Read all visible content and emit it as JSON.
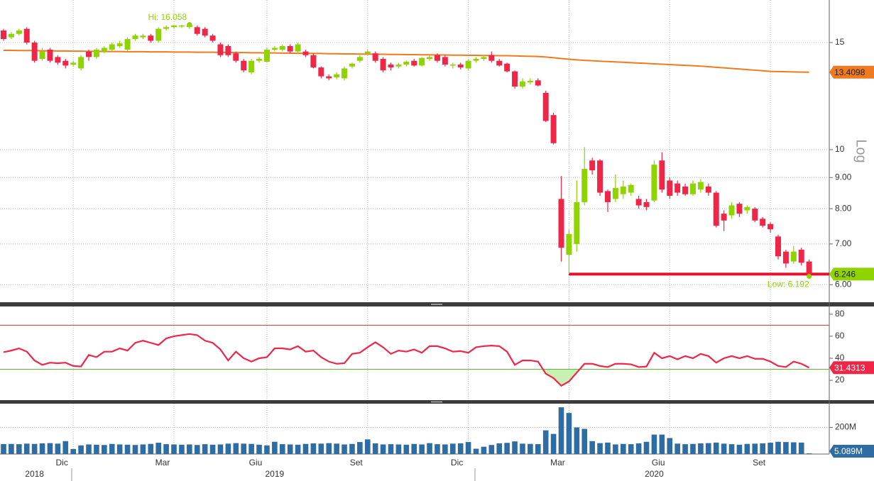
{
  "chart_data": [
    {
      "type": "candlestick",
      "scale": "log",
      "scale_label": "Log",
      "ylim": [
        5.63,
        17.62
      ],
      "yticks": [
        {
          "value": 6,
          "label": "6.00"
        },
        {
          "value": 7,
          "label": "7.00"
        },
        {
          "value": 8,
          "label": "8.00"
        },
        {
          "value": 9,
          "label": "9.00"
        },
        10,
        15
      ],
      "grid": true,
      "up_color": "#8fd400",
      "down_color": "#ee2748",
      "tag_color": "#8fd400",
      "level_color": "#e8112d",
      "annotations": [
        "Hi: 16.058",
        "Low: 6.192"
      ],
      "open": [
        15.7,
        15.3,
        15.5,
        15.8,
        15.0,
        14.1,
        14.6,
        14.2,
        14.0,
        13.8,
        13.6,
        14.5,
        14.2,
        14.5,
        14.6,
        14.8,
        14.6,
        15.2,
        15.3,
        15.4,
        15.1,
        15.8,
        15.9,
        15.95,
        15.9,
        15.9,
        15.8,
        15.4,
        14.9,
        14.8,
        14.4,
        14.0,
        13.4,
        14.0,
        13.95,
        14.6,
        14.6,
        14.8,
        14.5,
        14.5,
        14.3,
        13.65,
        13.2,
        13.15,
        13.1,
        13.7,
        14.0,
        14.4,
        14.4,
        14.1,
        13.8,
        13.7,
        13.8,
        14.0,
        13.75,
        14.1,
        14.3,
        14.2,
        13.75,
        13.8,
        13.6,
        14.0,
        14.1,
        14.3,
        14.0,
        13.85,
        13.45,
        12.7,
        12.9,
        13.0,
        12.4,
        11.4,
        8.3,
        6.72,
        7.0,
        8.2,
        9.6,
        9.6,
        8.55,
        8.3,
        8.45,
        8.5,
        8.3,
        8.2,
        8.25,
        9.6,
        8.9,
        8.8,
        8.7,
        8.45,
        8.6,
        8.7,
        8.5,
        7.85,
        7.8,
        8.15,
        7.95,
        8.0,
        7.7,
        7.55,
        7.2,
        6.8,
        6.55,
        6.85,
        6.55
      ],
      "high": [
        15.8,
        15.6,
        15.8,
        15.9,
        15.1,
        14.7,
        14.7,
        14.3,
        14.1,
        14.0,
        14.3,
        14.6,
        14.7,
        14.8,
        15.0,
        15.1,
        15.3,
        15.5,
        15.5,
        15.5,
        15.9,
        16.0,
        16.05,
        16.04,
        16.058,
        16.0,
        15.9,
        15.5,
        15.0,
        14.9,
        14.5,
        14.1,
        14.1,
        14.2,
        14.7,
        14.8,
        14.9,
        14.9,
        15.0,
        14.6,
        14.4,
        13.7,
        13.3,
        13.4,
        13.7,
        13.9,
        14.3,
        14.6,
        14.5,
        14.2,
        13.9,
        13.9,
        14.0,
        14.1,
        14.2,
        14.3,
        14.4,
        14.3,
        13.9,
        13.9,
        14.1,
        14.2,
        14.3,
        14.5,
        14.1,
        13.9,
        13.5,
        13.1,
        13.1,
        13.1,
        12.5,
        11.5,
        9.05,
        7.4,
        8.9,
        10.1,
        9.7,
        9.65,
        8.6,
        9.1,
        8.9,
        8.8,
        8.4,
        8.3,
        9.6,
        9.9,
        9.0,
        8.9,
        8.8,
        8.9,
        8.95,
        8.8,
        8.55,
        7.95,
        8.2,
        8.2,
        8.1,
        8.05,
        7.75,
        7.6,
        7.25,
        6.85,
        6.95,
        6.9,
        6.6
      ],
      "low": [
        15.1,
        15.2,
        15.4,
        14.9,
        13.9,
        14.0,
        13.9,
        13.8,
        13.6,
        13.7,
        13.5,
        14.0,
        14.1,
        14.4,
        14.5,
        14.7,
        14.5,
        15.1,
        15.2,
        15.0,
        15.0,
        15.7,
        15.8,
        15.85,
        15.8,
        15.4,
        15.3,
        15.0,
        14.2,
        14.2,
        13.9,
        13.4,
        13.3,
        13.9,
        13.9,
        14.5,
        14.5,
        14.4,
        14.4,
        14.2,
        13.6,
        13.1,
        13.0,
        13.05,
        13.0,
        13.6,
        13.9,
        14.3,
        13.9,
        13.4,
        13.5,
        13.6,
        13.7,
        13.7,
        13.7,
        14.0,
        13.9,
        13.7,
        13.6,
        13.55,
        13.5,
        13.9,
        14.0,
        13.9,
        13.7,
        13.4,
        12.6,
        12.6,
        12.8,
        12.7,
        11.1,
        10.2,
        6.55,
        6.25,
        6.8,
        8.1,
        9.1,
        8.4,
        7.9,
        8.2,
        8.3,
        8.4,
        8.0,
        7.95,
        8.2,
        8.5,
        8.3,
        8.4,
        8.4,
        8.4,
        8.5,
        8.4,
        7.45,
        7.35,
        7.7,
        7.75,
        7.85,
        7.6,
        7.45,
        7.3,
        6.6,
        6.4,
        6.5,
        6.45,
        6.192
      ],
      "close": [
        15.2,
        15.5,
        15.7,
        15.0,
        14.0,
        14.5,
        14.0,
        13.9,
        13.75,
        13.9,
        14.2,
        14.2,
        14.6,
        14.7,
        14.9,
        14.95,
        15.2,
        15.4,
        15.4,
        15.1,
        15.8,
        15.9,
        16.0,
        16.0,
        16.05,
        15.5,
        15.4,
        15.1,
        14.3,
        14.3,
        14.0,
        13.5,
        14.0,
        14.1,
        14.6,
        14.7,
        14.8,
        14.5,
        14.9,
        14.3,
        13.65,
        13.2,
        13.1,
        13.3,
        13.6,
        13.85,
        14.2,
        14.5,
        14.0,
        13.5,
        13.65,
        13.8,
        13.95,
        13.75,
        14.15,
        14.2,
        14.0,
        13.8,
        13.8,
        13.65,
        14.0,
        14.1,
        14.2,
        14.0,
        13.75,
        13.45,
        12.7,
        12.95,
        12.98,
        12.75,
        11.15,
        10.25,
        6.9,
        7.27,
        8.2,
        9.3,
        9.25,
        8.5,
        8.2,
        8.65,
        8.7,
        8.75,
        8.1,
        8.05,
        9.45,
        8.6,
        8.4,
        8.5,
        8.45,
        8.8,
        8.85,
        8.5,
        7.5,
        7.65,
        8.1,
        7.85,
        8.05,
        7.65,
        7.5,
        7.4,
        6.68,
        6.5,
        6.8,
        6.52,
        6.246
      ],
      "overlay": {
        "color": "#f07a1f",
        "values": [
          14.56,
          14.56,
          14.55,
          14.55,
          14.55,
          14.54,
          14.54,
          14.53,
          14.53,
          14.52,
          14.52,
          14.51,
          14.51,
          14.5,
          14.5,
          14.5,
          14.49,
          14.49,
          14.49,
          14.48,
          14.48,
          14.48,
          14.47,
          14.47,
          14.47,
          14.46,
          14.46,
          14.46,
          14.45,
          14.45,
          14.44,
          14.44,
          14.43,
          14.43,
          14.42,
          14.42,
          14.41,
          14.41,
          14.4,
          14.4,
          14.39,
          14.39,
          14.38,
          14.38,
          14.37,
          14.37,
          14.36,
          14.36,
          14.35,
          14.35,
          14.34,
          14.34,
          14.33,
          14.33,
          14.32,
          14.32,
          14.31,
          14.31,
          14.3,
          14.3,
          14.29,
          14.29,
          14.28,
          14.28,
          14.27,
          14.27,
          14.26,
          14.25,
          14.24,
          14.23,
          14.2,
          14.16,
          14.12,
          14.08,
          14.05,
          14.02,
          14.0,
          13.98,
          13.96,
          13.94,
          13.92,
          13.9,
          13.88,
          13.86,
          13.84,
          13.82,
          13.8,
          13.78,
          13.76,
          13.74,
          13.72,
          13.69,
          13.66,
          13.63,
          13.6,
          13.57,
          13.54,
          13.51,
          13.48,
          13.45,
          13.44,
          13.43,
          13.42,
          13.415,
          13.4098
        ]
      }
    },
    {
      "type": "line",
      "ylim": [
        2,
        87
      ],
      "yticks": [
        20,
        40,
        60,
        80
      ],
      "grid": true,
      "hlines": [
        {
          "value": 70,
          "color": "#c0392b"
        },
        {
          "value": 30,
          "color": "#5cb82e",
          "fill": "#c8f0b4"
        }
      ],
      "series": [
        {
          "color": "#ee2748",
          "values": [
            45.5,
            47,
            49,
            46,
            38,
            34,
            36,
            35.5,
            36,
            33,
            32.5,
            43,
            41,
            46,
            46,
            49,
            47,
            54,
            56,
            54,
            52,
            58,
            60,
            61,
            62,
            61,
            56,
            54,
            48,
            38,
            46,
            40,
            37,
            40,
            41,
            49,
            49,
            48,
            51,
            46,
            47,
            41,
            37,
            35,
            35.5,
            44,
            45,
            50,
            54.5,
            50,
            44,
            47,
            46,
            48,
            45,
            51,
            51,
            49,
            46,
            46.5,
            45,
            50,
            51,
            51.5,
            51,
            46,
            34,
            38,
            38,
            37,
            26,
            22,
            15,
            19,
            27,
            35,
            35,
            33,
            32,
            35,
            35,
            34.5,
            32,
            32.5,
            45,
            40,
            42,
            39,
            42,
            40,
            44,
            42,
            36,
            40,
            42,
            40,
            42,
            39.5,
            39.5,
            37,
            33,
            32,
            37,
            35,
            31.4313
          ]
        }
      ]
    },
    {
      "type": "bar",
      "ylim": [
        0,
        378000000
      ],
      "yticks": [
        {
          "value": 200000000,
          "label": "200M"
        }
      ],
      "grid": true,
      "color": "#2e6da4",
      "categories": [
        null,
        null,
        null,
        null,
        null,
        null,
        null,
        null,
        null,
        "Dic",
        null,
        null,
        null,
        null,
        null,
        null,
        null,
        null,
        null,
        null,
        null,
        null,
        "Mar",
        null,
        null,
        null,
        null,
        null,
        null,
        null,
        null,
        null,
        null,
        null,
        "Giu",
        null,
        null,
        null,
        null,
        null,
        null,
        null,
        null,
        null,
        null,
        null,
        null,
        "Set",
        null,
        null,
        null,
        null,
        null,
        null,
        null,
        null,
        null,
        null,
        null,
        null,
        "Dic",
        null,
        null,
        null,
        null,
        null,
        null,
        null,
        null,
        null,
        null,
        null,
        null,
        "Mar",
        null,
        null,
        null,
        null,
        null,
        null,
        null,
        null,
        null,
        null,
        null,
        null,
        "Giu",
        null,
        null,
        null,
        null,
        null,
        null,
        null,
        null,
        null,
        null,
        null,
        null,
        "Set",
        null,
        null,
        null,
        null,
        null
      ],
      "years": [
        null,
        null,
        null,
        null,
        "2018",
        null,
        null,
        null,
        null,
        null,
        null,
        null,
        null,
        null,
        null,
        null,
        null,
        null,
        null,
        null,
        null,
        null,
        null,
        null,
        null,
        null,
        null,
        null,
        null,
        null,
        null,
        null,
        null,
        null,
        null,
        "2019",
        null,
        null,
        null,
        null,
        null,
        null,
        null,
        null,
        null,
        null,
        null,
        null,
        null,
        null,
        null,
        null,
        null,
        null,
        null,
        null,
        null,
        null,
        null,
        null,
        null,
        null,
        null,
        null,
        null,
        null,
        null,
        null,
        null,
        null,
        null,
        null,
        null,
        null,
        null,
        null,
        null,
        null,
        null,
        null,
        null,
        null,
        null,
        null,
        "2020",
        null,
        null,
        null,
        null,
        null,
        null,
        null,
        null,
        null,
        null,
        null,
        null,
        null,
        null,
        null,
        null,
        null,
        null,
        null,
        null
      ],
      "values": [
        75000000,
        76000000,
        74000000,
        78000000,
        76000000,
        80000000,
        82000000,
        78000000,
        97000000,
        38000000,
        65000000,
        72000000,
        70000000,
        68000000,
        76000000,
        72000000,
        70000000,
        68000000,
        72000000,
        76000000,
        85000000,
        74000000,
        72000000,
        70000000,
        72000000,
        68000000,
        74000000,
        70000000,
        72000000,
        78000000,
        82000000,
        78000000,
        76000000,
        70000000,
        65000000,
        92000000,
        74000000,
        72000000,
        70000000,
        76000000,
        80000000,
        78000000,
        82000000,
        78000000,
        72000000,
        76000000,
        90000000,
        110000000,
        80000000,
        72000000,
        74000000,
        72000000,
        70000000,
        76000000,
        72000000,
        82000000,
        74000000,
        72000000,
        78000000,
        80000000,
        90000000,
        40000000,
        55000000,
        68000000,
        80000000,
        84000000,
        95000000,
        78000000,
        76000000,
        74000000,
        178000000,
        151000000,
        351000000,
        308000000,
        200000000,
        189000000,
        97000000,
        82000000,
        86000000,
        72000000,
        76000000,
        74000000,
        80000000,
        92000000,
        146000000,
        146000000,
        120000000,
        78000000,
        74000000,
        76000000,
        80000000,
        82000000,
        86000000,
        78000000,
        74000000,
        70000000,
        76000000,
        78000000,
        80000000,
        85000000,
        92000000,
        90000000,
        88000000,
        86000000,
        5089000
      ],
      "value_labels": [
        null,
        null,
        null,
        null,
        null,
        null,
        null,
        null,
        null,
        null,
        null,
        null,
        null,
        null,
        null,
        null,
        null,
        null,
        null,
        null,
        null,
        null,
        null,
        null,
        null,
        null,
        null,
        null,
        null,
        null,
        null,
        null,
        null,
        null,
        null,
        null,
        null,
        null,
        null,
        null,
        null,
        null,
        null,
        null,
        null,
        null,
        null,
        null,
        null,
        null,
        null,
        null,
        null,
        null,
        null,
        null,
        null,
        null,
        null,
        null,
        null,
        null,
        null,
        null,
        null,
        null,
        null,
        null,
        null,
        null,
        null,
        null,
        null,
        null,
        null,
        null,
        null,
        null,
        null,
        null,
        null,
        null,
        null,
        null,
        null,
        null,
        null,
        null,
        null,
        null,
        null,
        null,
        null,
        null,
        null,
        null,
        null,
        null,
        null,
        null,
        null,
        null,
        null,
        null,
        "5.089M"
      ]
    }
  ]
}
